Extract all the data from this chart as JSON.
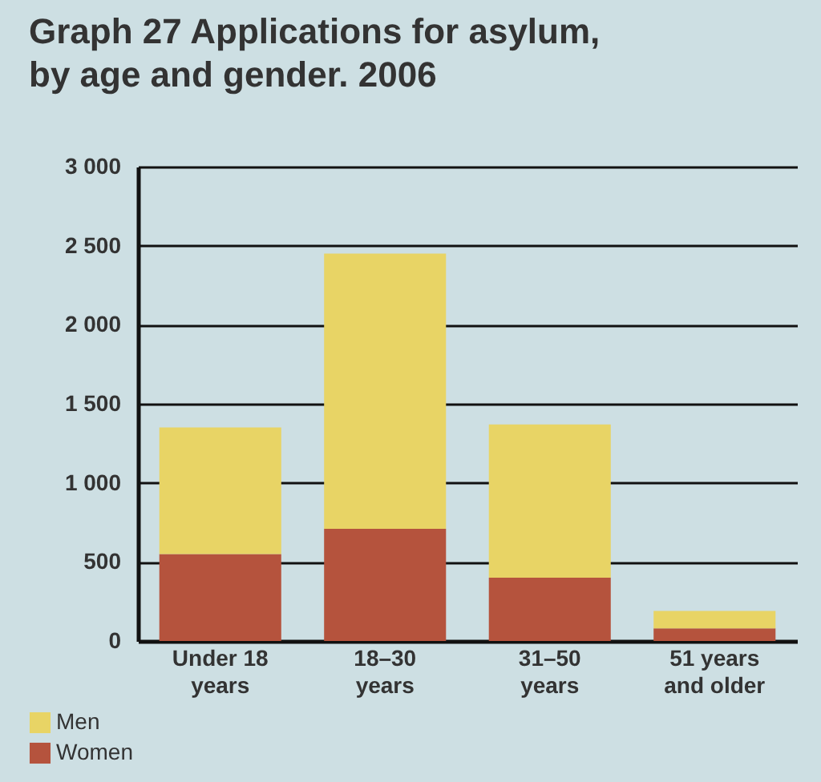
{
  "chart_data": {
    "type": "bar",
    "title": "Graph 27 Applications for asylum, by age and gender. 2006",
    "categories": [
      "Under 18 years",
      "18–30 years",
      "31–50 years",
      "51 years and older"
    ],
    "stacked": true,
    "series": [
      {
        "name": "Women",
        "color": "#b5533d",
        "values": [
          550,
          710,
          400,
          80
        ]
      },
      {
        "name": "Men",
        "color": "#e8d465",
        "values": [
          800,
          1740,
          970,
          110
        ]
      }
    ],
    "ylim": [
      0,
      3000
    ],
    "yticks": [
      0,
      500,
      {
        "value": 1000,
        "label": "1 000"
      },
      {
        "value": 1500,
        "label": "1 500"
      },
      {
        "value": 2000,
        "label": "2 000"
      },
      {
        "value": 2500,
        "label": "2 500"
      },
      {
        "value": 3000,
        "label": "3 000"
      }
    ],
    "grid": "y",
    "legend": "bottom left"
  }
}
